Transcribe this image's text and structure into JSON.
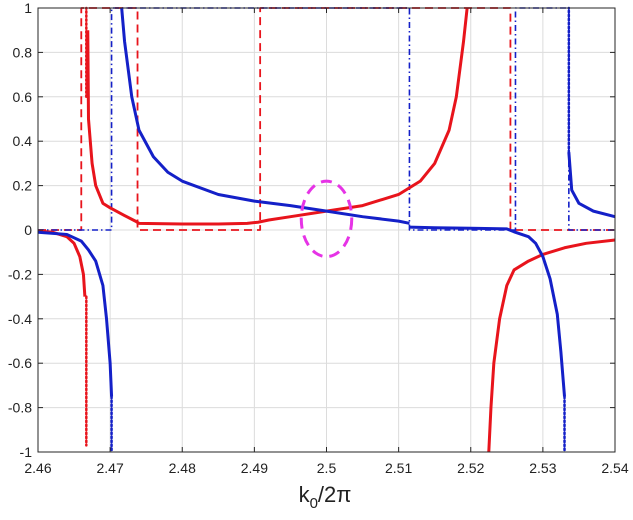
{
  "chart_data": {
    "type": "line",
    "title": "",
    "xlabel_main": "k",
    "xlabel_sub": "0",
    "xlabel_rest": "/2π",
    "ylabel": "",
    "xlim": [
      2.46,
      2.54
    ],
    "ylim": [
      -1,
      1
    ],
    "x_ticks": [
      2.46,
      2.47,
      2.48,
      2.49,
      2.5,
      2.51,
      2.52,
      2.53,
      2.54
    ],
    "x_tick_labels": [
      "2.46",
      "2.47",
      "2.48",
      "2.49",
      "2.5",
      "2.51",
      "2.52",
      "2.53",
      "2.54"
    ],
    "y_ticks": [
      1,
      0.8,
      0.6,
      0.4,
      0.2,
      0,
      -0.2,
      -0.4,
      -0.6,
      -0.8,
      -1
    ],
    "y_tick_labels": [
      "1",
      "0.8",
      "0.6",
      "0.4",
      "0.2",
      "0",
      "-0.2",
      "-0.4",
      "-0.6",
      "-0.8",
      "-1"
    ],
    "grid": true,
    "colors": {
      "red": "#e8141c",
      "blue": "#1420c8",
      "magenta": "#e633e6",
      "grid": "#dcdcdc",
      "axis": "#262626"
    },
    "series": [
      {
        "style": "red-solid",
        "segments": [
          [
            [
              2.46,
              -0.005
            ],
            [
              2.462,
              -0.01
            ],
            [
              2.464,
              -0.03
            ],
            [
              2.465,
              -0.06
            ],
            [
              2.4658,
              -0.12
            ],
            [
              2.4663,
              -0.2
            ],
            [
              2.4665,
              -0.3
            ]
          ],
          [
            [
              2.4669,
              0.9
            ],
            [
              2.467,
              0.5
            ],
            [
              2.4675,
              0.3
            ],
            [
              2.468,
              0.2
            ],
            [
              2.469,
              0.12
            ],
            [
              2.47,
              0.1
            ],
            [
              2.472,
              0.065
            ],
            [
              2.4735,
              0.04
            ],
            [
              2.474,
              0.03
            ],
            [
              2.48,
              0.027
            ],
            [
              2.485,
              0.027
            ],
            [
              2.489,
              0.03
            ],
            [
              2.4905,
              0.035
            ],
            [
              2.492,
              0.045
            ],
            [
              2.495,
              0.06
            ],
            [
              2.5,
              0.085
            ],
            [
              2.505,
              0.11
            ],
            [
              2.51,
              0.16
            ],
            [
              2.513,
              0.22
            ],
            [
              2.515,
              0.3
            ],
            [
              2.517,
              0.45
            ],
            [
              2.518,
              0.6
            ],
            [
              2.519,
              0.85
            ],
            [
              2.5195,
              1.0
            ]
          ],
          [
            [
              2.5225,
              -1.0
            ],
            [
              2.5228,
              -0.8
            ],
            [
              2.5232,
              -0.6
            ],
            [
              2.524,
              -0.4
            ],
            [
              2.525,
              -0.25
            ],
            [
              2.526,
              -0.18
            ],
            [
              2.528,
              -0.14
            ],
            [
              2.53,
              -0.11
            ],
            [
              2.533,
              -0.08
            ],
            [
              2.536,
              -0.06
            ],
            [
              2.54,
              -0.045
            ]
          ]
        ]
      },
      {
        "style": "red-dashed",
        "segments": [
          [
            [
              2.46,
              0.0
            ],
            [
              2.466,
              0.0
            ],
            [
              2.466,
              1.0
            ],
            [
              2.4738,
              1.0
            ],
            [
              2.4738,
              0.0
            ],
            [
              2.4908,
              0.0
            ],
            [
              2.4908,
              1.0
            ],
            [
              2.5255,
              1.0
            ],
            [
              2.5255,
              0.0
            ],
            [
              2.54,
              0.0
            ]
          ]
        ]
      },
      {
        "style": "red-dotted",
        "segments": [
          [
            [
              2.4667,
              -0.3
            ],
            [
              2.4667,
              -0.97
            ]
          ],
          [
            [
              2.4667,
              0.6
            ],
            [
              2.4667,
              1.0
            ]
          ]
        ]
      },
      {
        "style": "blue-solid",
        "segments": [
          [
            [
              2.46,
              -0.01
            ],
            [
              2.464,
              -0.02
            ],
            [
              2.466,
              -0.05
            ],
            [
              2.467,
              -0.09
            ],
            [
              2.468,
              -0.14
            ],
            [
              2.469,
              -0.25
            ],
            [
              2.4695,
              -0.4
            ],
            [
              2.47,
              -0.6
            ],
            [
              2.4702,
              -0.75
            ]
          ],
          [
            [
              2.4716,
              1.0
            ],
            [
              2.472,
              0.85
            ],
            [
              2.473,
              0.6
            ],
            [
              2.474,
              0.45
            ],
            [
              2.476,
              0.33
            ],
            [
              2.478,
              0.26
            ],
            [
              2.48,
              0.22
            ],
            [
              2.485,
              0.16
            ],
            [
              2.49,
              0.13
            ],
            [
              2.495,
              0.11
            ],
            [
              2.5,
              0.085
            ],
            [
              2.505,
              0.06
            ],
            [
              2.51,
              0.04
            ],
            [
              2.5115,
              0.03
            ]
          ],
          [
            [
              2.5115,
              0.013
            ],
            [
              2.515,
              0.01
            ],
            [
              2.52,
              0.008
            ],
            [
              2.525,
              0.005
            ],
            [
              2.526,
              -0.008
            ],
            [
              2.528,
              -0.03
            ],
            [
              2.529,
              -0.06
            ],
            [
              2.53,
              -0.12
            ],
            [
              2.531,
              -0.22
            ],
            [
              2.532,
              -0.38
            ],
            [
              2.5325,
              -0.55
            ],
            [
              2.533,
              -0.75
            ]
          ],
          [
            [
              2.5336,
              0.35
            ],
            [
              2.534,
              0.18
            ],
            [
              2.535,
              0.12
            ],
            [
              2.537,
              0.085
            ],
            [
              2.54,
              0.06
            ]
          ]
        ]
      },
      {
        "style": "blue-dashdot",
        "segments": [
          [
            [
              2.46,
              0.0
            ],
            [
              2.4702,
              0.0
            ],
            [
              2.4702,
              1.0
            ],
            [
              2.5115,
              1.0
            ],
            [
              2.5115,
              0.0
            ],
            [
              2.5262,
              0.0
            ],
            [
              2.5262,
              1.0
            ],
            [
              2.5336,
              1.0
            ],
            [
              2.5336,
              0.0
            ],
            [
              2.54,
              0.0
            ]
          ]
        ]
      },
      {
        "style": "blue-dotted",
        "segments": [
          [
            [
              2.4702,
              -0.75
            ],
            [
              2.4702,
              -1.0
            ]
          ],
          [
            [
              2.533,
              -0.75
            ],
            [
              2.533,
              -1.0
            ]
          ],
          [
            [
              2.5336,
              0.35
            ],
            [
              2.5336,
              1.0
            ]
          ]
        ]
      }
    ],
    "annotations": [
      {
        "type": "ellipse",
        "style": "magenta-dashed",
        "cx": 2.5,
        "cy": 0.05,
        "rx": 0.0035,
        "ry": 0.17
      }
    ]
  }
}
